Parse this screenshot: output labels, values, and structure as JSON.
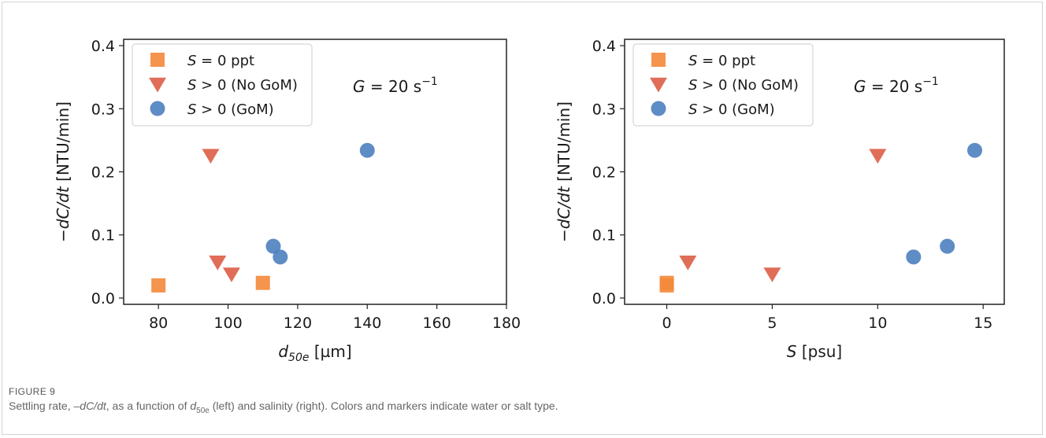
{
  "figure": {
    "caption_label": "FIGURE 9",
    "caption_parts": {
      "p1": "Settling rate, ",
      "p2": "–dC/dt",
      "p3": ", as a function of ",
      "p4": "d",
      "p5": "50e",
      "p6": " (left) and salinity (right). Colors and markers indicate water or salt type."
    }
  },
  "colors": {
    "orange_square": "#f4883a",
    "red_triangle": "#dd5d45",
    "blue_circle": "#4d80bf"
  },
  "chart_data": [
    {
      "type": "scatter",
      "xlabel": "d50e [µm]",
      "xlabel_parts": {
        "main": "d",
        "sub": "50e",
        "rest": " [µm]"
      },
      "ylabel": "−dC/dt [NTU/min]",
      "xlim": [
        70,
        180
      ],
      "ylim": [
        -0.01,
        0.41
      ],
      "xticks": [
        "80",
        "100",
        "120",
        "140",
        "160",
        "180"
      ],
      "yticks": [
        "0.0",
        "0.1",
        "0.2",
        "0.3",
        "0.4"
      ],
      "legend_position": "top-left",
      "annotation": {
        "pre": "G",
        "mid": " = 20 s",
        "sup": "−1"
      },
      "series": [
        {
          "name": "S = 0 ppt",
          "label_italic": "S",
          "label_rest": " = 0 ppt",
          "marker": "square",
          "color": "#f4883a",
          "points": [
            [
              80,
              0.02
            ],
            [
              110,
              0.024
            ]
          ]
        },
        {
          "name": "S > 0 (No GoM)",
          "label_italic": "S",
          "label_rest": " > 0 (No GoM)",
          "marker": "triangle-down",
          "color": "#dd5d45",
          "points": [
            [
              95,
              0.226
            ],
            [
              97,
              0.057
            ],
            [
              101,
              0.038
            ]
          ]
        },
        {
          "name": "S > 0 (GoM)",
          "label_italic": "S",
          "label_rest": " > 0 (GoM)",
          "marker": "circle",
          "color": "#4d80bf",
          "points": [
            [
              140,
              0.234
            ],
            [
              113,
              0.082
            ],
            [
              115,
              0.065
            ]
          ]
        }
      ]
    },
    {
      "type": "scatter",
      "xlabel": "S [psu]",
      "xlabel_parts": {
        "main": "S",
        "sub": "",
        "rest": " [psu]"
      },
      "ylabel": "−dC/dt [NTU/min]",
      "xlim": [
        -2,
        16
      ],
      "ylim": [
        -0.01,
        0.41
      ],
      "xticks": [
        "0",
        "5",
        "10",
        "15"
      ],
      "yticks": [
        "0.0",
        "0.1",
        "0.2",
        "0.3",
        "0.4"
      ],
      "legend_position": "top-left",
      "annotation": {
        "pre": "G",
        "mid": " = 20 s",
        "sup": "−1"
      },
      "series": [
        {
          "name": "S = 0 ppt",
          "label_italic": "S",
          "label_rest": " = 0 ppt",
          "marker": "square",
          "color": "#f4883a",
          "points": [
            [
              0,
              0.02
            ],
            [
              0,
              0.024
            ]
          ]
        },
        {
          "name": "S > 0 (No GoM)",
          "label_italic": "S",
          "label_rest": " > 0 (No GoM)",
          "marker": "triangle-down",
          "color": "#dd5d45",
          "points": [
            [
              10,
              0.226
            ],
            [
              1,
              0.057
            ],
            [
              5,
              0.038
            ]
          ]
        },
        {
          "name": "S > 0 (GoM)",
          "label_italic": "S",
          "label_rest": " > 0 (GoM)",
          "marker": "circle",
          "color": "#4d80bf",
          "points": [
            [
              14.6,
              0.234
            ],
            [
              13.3,
              0.082
            ],
            [
              11.7,
              0.065
            ]
          ]
        }
      ]
    }
  ]
}
